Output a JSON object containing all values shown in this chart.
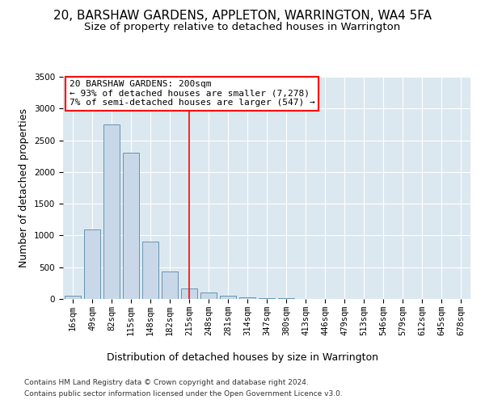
{
  "title": "20, BARSHAW GARDENS, APPLETON, WARRINGTON, WA4 5FA",
  "subtitle": "Size of property relative to detached houses in Warrington",
  "xlabel": "Distribution of detached houses by size in Warrington",
  "ylabel": "Number of detached properties",
  "footnote1": "Contains HM Land Registry data © Crown copyright and database right 2024.",
  "footnote2": "Contains public sector information licensed under the Open Government Licence v3.0.",
  "categories": [
    "16sqm",
    "49sqm",
    "82sqm",
    "115sqm",
    "148sqm",
    "182sqm",
    "215sqm",
    "248sqm",
    "281sqm",
    "314sqm",
    "347sqm",
    "380sqm",
    "413sqm",
    "446sqm",
    "479sqm",
    "513sqm",
    "546sqm",
    "579sqm",
    "612sqm",
    "645sqm",
    "678sqm"
  ],
  "values": [
    50,
    1100,
    2750,
    2300,
    900,
    430,
    165,
    100,
    55,
    30,
    12,
    8,
    5,
    3,
    2,
    1,
    1,
    0,
    0,
    0,
    0
  ],
  "bar_color": "#c8d8e8",
  "bar_edge_color": "#5588aa",
  "background_color": "#dce8f0",
  "red_line_index": 6,
  "property_size": "200sqm",
  "property_name": "20 BARSHAW GARDENS",
  "pct_smaller": "93%",
  "n_smaller": "7,278",
  "pct_larger_semi": "7%",
  "n_larger_semi": "547",
  "ylim": [
    0,
    3500
  ],
  "title_fontsize": 11,
  "subtitle_fontsize": 9.5,
  "axis_label_fontsize": 9,
  "tick_fontsize": 7.5,
  "annotation_fontsize": 8,
  "footnote_fontsize": 6.5
}
